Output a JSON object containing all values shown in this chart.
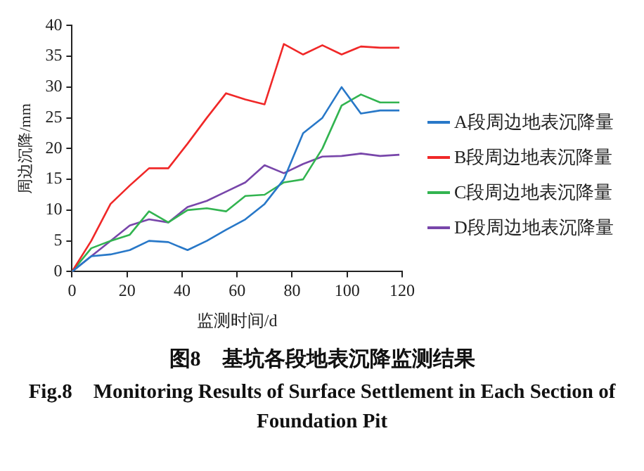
{
  "chart_data": {
    "type": "line",
    "title": "图8　基坑各段地表沉降监测结果",
    "subtitle": "Fig.8　Monitoring Results of Surface Settlement in Each Section of Foundation Pit",
    "xlabel": "监测时间/d",
    "ylabel": "周边沉降/mm",
    "x": [
      0,
      7,
      14,
      21,
      28,
      35,
      42,
      49,
      56,
      63,
      70,
      77,
      84,
      91,
      98,
      105,
      112,
      119
    ],
    "series": [
      {
        "name": "A段周边地表沉降量",
        "color": "#2878c8",
        "values": [
          0,
          2.5,
          2.8,
          3.5,
          5,
          4.8,
          3.5,
          5,
          6.8,
          8.5,
          11,
          15,
          22.5,
          25,
          30,
          25.7,
          26.2,
          26.2
        ]
      },
      {
        "name": "B段周边地表沉降量",
        "color": "#f02828",
        "values": [
          0,
          5,
          11,
          14,
          16.8,
          16.8,
          20.8,
          25,
          29,
          28,
          27.2,
          37,
          35.3,
          36.8,
          35.3,
          36.6,
          36.4,
          36.4
        ]
      },
      {
        "name": "C段周边地表沉降量",
        "color": "#32b450",
        "values": [
          0,
          3.8,
          5,
          6,
          9.8,
          8,
          10,
          10.3,
          9.8,
          12.3,
          12.5,
          14.5,
          15,
          20,
          27,
          28.8,
          27.5,
          27.5
        ]
      },
      {
        "name": "D段周边地表沉降量",
        "color": "#7846aa",
        "values": [
          0,
          2.5,
          5,
          7.5,
          8.5,
          8,
          10.5,
          11.5,
          13,
          14.5,
          17.3,
          16,
          17.5,
          18.7,
          18.8,
          19.2,
          18.8,
          19
        ]
      }
    ],
    "xlim": [
      0,
      120
    ],
    "xticks": [
      0,
      20,
      40,
      60,
      80,
      100,
      120
    ],
    "ylim": [
      0,
      40
    ],
    "yticks": [
      0,
      5,
      10,
      15,
      20,
      25,
      30,
      35,
      40
    ],
    "grid": false,
    "legend": "right",
    "marker": "none",
    "line_style": "solid"
  }
}
